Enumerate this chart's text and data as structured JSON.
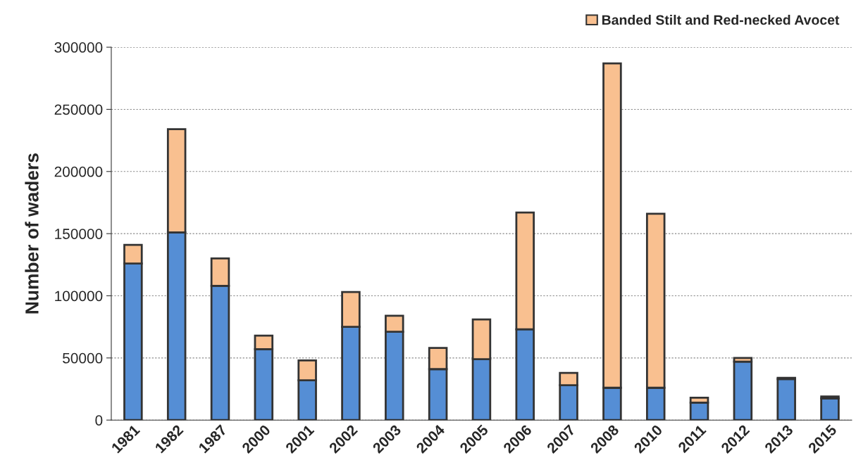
{
  "chart_data": {
    "type": "bar",
    "stacked": true,
    "ylabel": "Number of waders",
    "categories": [
      "1981",
      "1982",
      "1987",
      "2000",
      "2001",
      "2002",
      "2003",
      "2004",
      "2005",
      "2006",
      "2007",
      "2008",
      "2010",
      "2011",
      "2012",
      "2013",
      "2015"
    ],
    "series": [
      {
        "color": "#558ed5",
        "values": [
          126000,
          151000,
          108000,
          57000,
          32000,
          75000,
          71000,
          41000,
          49000,
          73000,
          28000,
          26000,
          26000,
          14000,
          47000,
          33000,
          17500
        ]
      },
      {
        "name": "Banded Stilt and Red-necked Avocet",
        "color": "#f9c090",
        "values": [
          15000,
          83000,
          22000,
          11000,
          16000,
          28000,
          13000,
          17000,
          32000,
          94000,
          10000,
          261000,
          140000,
          4000,
          3000,
          1000,
          1500
        ]
      }
    ],
    "ylim": [
      0,
      300000
    ],
    "yticks": [
      0,
      50000,
      100000,
      150000,
      200000,
      250000,
      300000
    ],
    "grid": "y",
    "legend": "top right"
  }
}
